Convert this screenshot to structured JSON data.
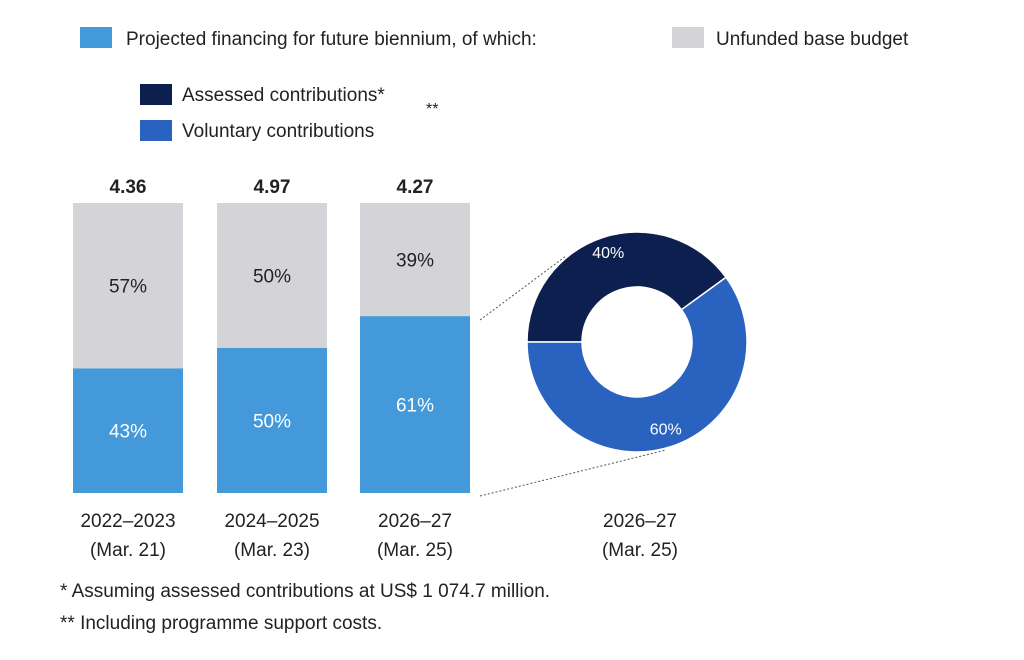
{
  "chart_data": [
    {
      "type": "stacked_bar_100",
      "categories": [
        [
          "2022–2023",
          "(Mar. 21)"
        ],
        [
          "2024–2025",
          "(Mar. 23)"
        ],
        [
          "2026–27",
          "(Mar. 25)"
        ]
      ],
      "totals": [
        4.36,
        4.97,
        4.27
      ],
      "series": [
        {
          "name": "Projected financing for future biennium, of which:",
          "color": "#4399d9",
          "values": [
            43,
            50,
            61
          ],
          "value_labels": [
            "43%",
            "50%",
            "61%"
          ],
          "label_color": "#ffffff"
        },
        {
          "name": "Unfunded base budget",
          "color": "#d4d4d8",
          "values": [
            57,
            50,
            39
          ],
          "value_labels": [
            "57%",
            "50%",
            "39%"
          ],
          "label_color": "#222222"
        }
      ],
      "ylim": [
        0,
        100
      ]
    },
    {
      "type": "donut",
      "category": [
        "2026–27",
        "(Mar. 25)"
      ],
      "series": [
        {
          "name": "Assessed contributions*",
          "name_note": "**",
          "color": "#0d1f4f",
          "values": [
            40
          ],
          "value_labels": [
            "40%"
          ]
        },
        {
          "name": "Voluntary contributions",
          "color": "#2a62c0",
          "values": [
            60
          ],
          "value_labels": [
            "60%"
          ]
        }
      ]
    }
  ],
  "footnotes": [
    "*  Assuming assessed contributions at US$ 1 074.7 million.",
    "** Including programme support costs."
  ]
}
